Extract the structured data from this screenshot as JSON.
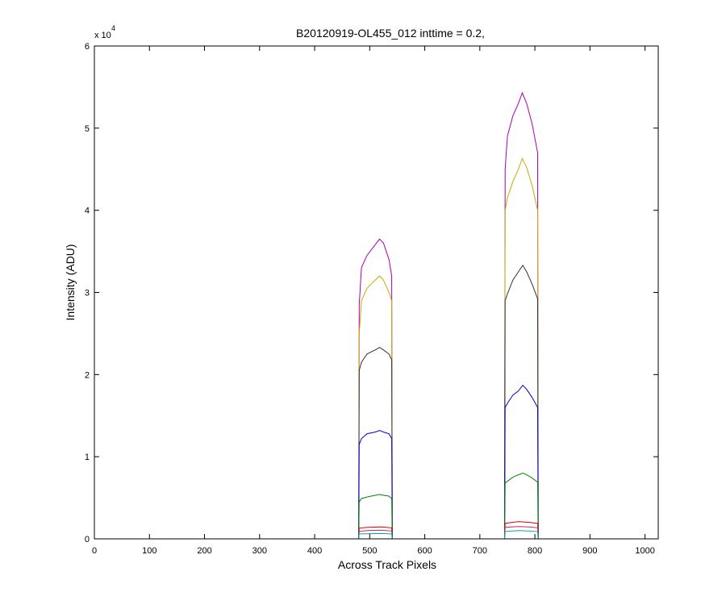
{
  "chart_data": {
    "type": "line",
    "title": "B20120919-OL455_012 inttime = 0.2,",
    "xlabel": "Across Track Pixels",
    "ylabel": "Intensity (ADU)",
    "y_exponent_label": "x 10",
    "y_exponent": "4",
    "xlim": [
      0,
      1024
    ],
    "ylim": [
      0,
      60000
    ],
    "xticks": [
      0,
      100,
      200,
      300,
      400,
      500,
      600,
      700,
      800,
      900,
      1000
    ],
    "yticks": [
      0,
      10000,
      20000,
      30000,
      40000,
      50000,
      60000
    ],
    "ytick_labels": [
      "0",
      "1",
      "2",
      "3",
      "4",
      "5",
      "6"
    ],
    "grid": false,
    "series": [
      {
        "color": "#aa00aa",
        "values": [
          [
            0,
            0
          ],
          [
            480,
            0
          ],
          [
            481,
            28500
          ],
          [
            485,
            33000
          ],
          [
            495,
            34500
          ],
          [
            510,
            35800
          ],
          [
            518,
            36500
          ],
          [
            525,
            36000
          ],
          [
            535,
            34000
          ],
          [
            540,
            32000
          ],
          [
            541,
            0
          ],
          [
            745,
            0
          ],
          [
            746,
            45000
          ],
          [
            750,
            49000
          ],
          [
            760,
            51500
          ],
          [
            770,
            53000
          ],
          [
            777,
            54300
          ],
          [
            785,
            53000
          ],
          [
            795,
            50500
          ],
          [
            805,
            47000
          ],
          [
            806,
            0
          ],
          [
            1024,
            0
          ]
        ]
      },
      {
        "color": "#c8aa00",
        "values": [
          [
            0,
            0
          ],
          [
            480,
            0
          ],
          [
            481,
            25000
          ],
          [
            485,
            29000
          ],
          [
            495,
            30500
          ],
          [
            510,
            31500
          ],
          [
            518,
            32000
          ],
          [
            525,
            31500
          ],
          [
            535,
            30000
          ],
          [
            540,
            29000
          ],
          [
            541,
            0
          ],
          [
            745,
            0
          ],
          [
            746,
            40000
          ],
          [
            750,
            41500
          ],
          [
            760,
            43500
          ],
          [
            770,
            45000
          ],
          [
            777,
            46300
          ],
          [
            785,
            45200
          ],
          [
            795,
            43000
          ],
          [
            805,
            40000
          ],
          [
            806,
            0
          ],
          [
            1024,
            0
          ]
        ]
      },
      {
        "color": "#303030",
        "values": [
          [
            0,
            0
          ],
          [
            480,
            0
          ],
          [
            481,
            20500
          ],
          [
            485,
            21500
          ],
          [
            495,
            22500
          ],
          [
            510,
            23000
          ],
          [
            518,
            23300
          ],
          [
            525,
            23000
          ],
          [
            535,
            22500
          ],
          [
            540,
            21800
          ],
          [
            541,
            0
          ],
          [
            745,
            0
          ],
          [
            746,
            29000
          ],
          [
            750,
            29800
          ],
          [
            760,
            31500
          ],
          [
            770,
            32500
          ],
          [
            778,
            33300
          ],
          [
            785,
            32500
          ],
          [
            795,
            31000
          ],
          [
            805,
            29200
          ],
          [
            806,
            0
          ],
          [
            1024,
            0
          ]
        ]
      },
      {
        "color": "#0000cc",
        "values": [
          [
            0,
            0
          ],
          [
            480,
            0
          ],
          [
            481,
            11500
          ],
          [
            485,
            12200
          ],
          [
            495,
            12800
          ],
          [
            510,
            13000
          ],
          [
            518,
            13200
          ],
          [
            525,
            13000
          ],
          [
            535,
            12800
          ],
          [
            540,
            12200
          ],
          [
            541,
            0
          ],
          [
            745,
            0
          ],
          [
            746,
            16000
          ],
          [
            750,
            16500
          ],
          [
            760,
            17500
          ],
          [
            770,
            18000
          ],
          [
            778,
            18700
          ],
          [
            785,
            18200
          ],
          [
            795,
            17200
          ],
          [
            805,
            16000
          ],
          [
            806,
            0
          ],
          [
            1024,
            0
          ]
        ]
      },
      {
        "color": "#008800",
        "values": [
          [
            0,
            0
          ],
          [
            480,
            0
          ],
          [
            481,
            4500
          ],
          [
            485,
            4900
          ],
          [
            495,
            5100
          ],
          [
            510,
            5300
          ],
          [
            518,
            5400
          ],
          [
            525,
            5300
          ],
          [
            535,
            5200
          ],
          [
            540,
            4900
          ],
          [
            541,
            0
          ],
          [
            745,
            0
          ],
          [
            746,
            6800
          ],
          [
            750,
            7000
          ],
          [
            760,
            7500
          ],
          [
            770,
            7800
          ],
          [
            778,
            8000
          ],
          [
            785,
            7800
          ],
          [
            795,
            7400
          ],
          [
            805,
            6900
          ],
          [
            806,
            0
          ],
          [
            1024,
            0
          ]
        ]
      },
      {
        "color": "#dd0000",
        "values": [
          [
            0,
            0
          ],
          [
            480,
            0
          ],
          [
            481,
            1300
          ],
          [
            495,
            1400
          ],
          [
            520,
            1450
          ],
          [
            540,
            1350
          ],
          [
            541,
            0
          ],
          [
            745,
            0
          ],
          [
            746,
            1900
          ],
          [
            770,
            2100
          ],
          [
            790,
            2000
          ],
          [
            805,
            1900
          ],
          [
            806,
            0
          ],
          [
            1024,
            0
          ]
        ]
      },
      {
        "color": "#cc2266",
        "values": [
          [
            0,
            0
          ],
          [
            480,
            0
          ],
          [
            481,
            900
          ],
          [
            495,
            1000
          ],
          [
            520,
            1050
          ],
          [
            540,
            950
          ],
          [
            541,
            0
          ],
          [
            745,
            0
          ],
          [
            746,
            1400
          ],
          [
            770,
            1500
          ],
          [
            790,
            1450
          ],
          [
            805,
            1350
          ],
          [
            806,
            0
          ],
          [
            1024,
            0
          ]
        ]
      },
      {
        "color": "#00aaaa",
        "values": [
          [
            0,
            0
          ],
          [
            480,
            0
          ],
          [
            481,
            600
          ],
          [
            520,
            650
          ],
          [
            540,
            600
          ],
          [
            541,
            0
          ],
          [
            745,
            0
          ],
          [
            746,
            900
          ],
          [
            770,
            1000
          ],
          [
            805,
            900
          ],
          [
            806,
            0
          ],
          [
            1024,
            0
          ]
        ]
      }
    ]
  }
}
